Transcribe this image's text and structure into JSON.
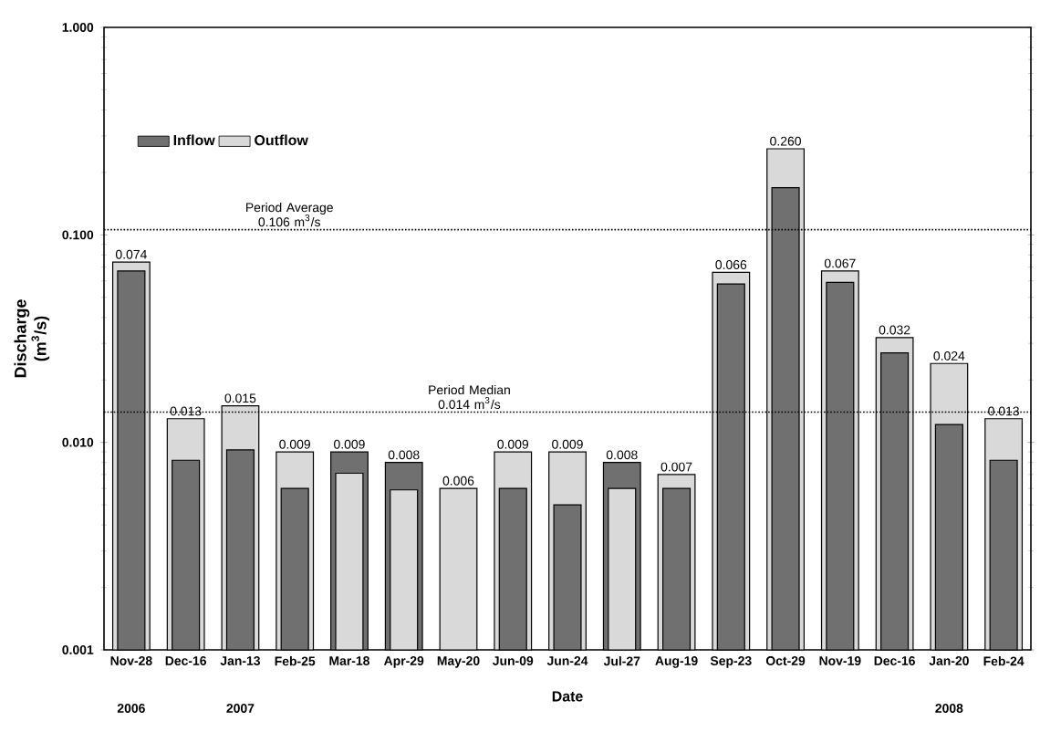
{
  "chart_data": {
    "type": "bar",
    "xlabel": "Date",
    "ylabel": "Discharge (m$^{3}$/s)",
    "categories": [
      "Nov-28",
      "Dec-16",
      "Jan-13",
      "Feb-25",
      "Mar-18",
      "Apr-29",
      "May-20",
      "Jun-09",
      "Jun-24",
      "Jul-27",
      "Aug-19",
      "Sep-23",
      "Oct-29",
      "Nov-19",
      "Dec-16",
      "Jan-20",
      "Feb-24"
    ],
    "series": [
      {
        "name": "Inflow",
        "color": "#707070",
        "values": [
          0.067,
          0.0082,
          0.0092,
          0.006,
          0.009,
          0.008,
          null,
          0.006,
          0.005,
          0.008,
          0.006,
          0.058,
          0.169,
          0.059,
          0.027,
          0.0122,
          0.0082
        ],
        "value_labels": [
          null,
          null,
          null,
          null,
          "0.009",
          "0.008",
          null,
          null,
          null,
          "0.008",
          null,
          null,
          null,
          null,
          null,
          null,
          null
        ]
      },
      {
        "name": "Outflow",
        "color": "#d9d9d9",
        "values": [
          0.074,
          0.013,
          0.015,
          0.009,
          0.0071,
          0.0059,
          0.006,
          0.009,
          0.009,
          0.006,
          0.007,
          0.066,
          0.26,
          0.067,
          0.032,
          0.024,
          0.013
        ],
        "value_labels": [
          "0.074",
          "0.013",
          "0.015",
          "0.009",
          null,
          null,
          "0.006",
          "0.009",
          "0.009",
          null,
          "0.007",
          "0.066",
          "0.260",
          "0.067",
          "0.032",
          "0.024",
          "0.013"
        ]
      }
    ],
    "log": "y",
    "ylim": [
      0.001,
      1
    ],
    "yticks": [
      {
        "value": 0.001,
        "label": "0.001"
      },
      {
        "value": 0.01,
        "label": "0.010"
      },
      {
        "value": 0.1,
        "label": "0.100"
      },
      {
        "value": 1,
        "label": "1.000"
      }
    ],
    "ref_lines": [
      {
        "axis": "y",
        "value": 0.106,
        "label": "Period Average 0.106 m$^{3}$/s",
        "line_style": "dotted"
      },
      {
        "axis": "y",
        "value": 0.014,
        "label": "Period Median 0.014 m$^{3}$/s",
        "line_style": "dotted"
      }
    ],
    "annotations": [
      "2006",
      "2007",
      "2008"
    ],
    "legend": "top left",
    "grid": false
  }
}
